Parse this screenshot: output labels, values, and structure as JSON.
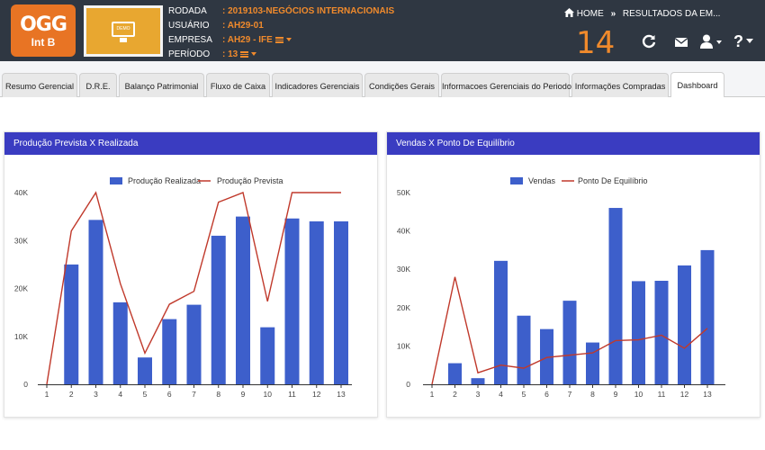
{
  "header": {
    "logo_line1": "OGG",
    "logo_line2": "Int B",
    "demo_badge": "DEMO",
    "rodada_label": "RODADA",
    "rodada_value": ": 2019103-NEGÓCIOS INTERNACIONAIS",
    "usuario_label": "USUÁRIO",
    "usuario_value": ": AH29-01",
    "empresa_label": "EMPRESA",
    "empresa_value": ": AH29 - IFE",
    "periodo_label": "PERÍODO",
    "periodo_value": ": 13",
    "breadcrumb_home": "HOME",
    "breadcrumb_current": "RESULTADOS DA EM...",
    "round_number": "14"
  },
  "tabs": [
    {
      "label": "Resumo Gerencial"
    },
    {
      "label": "D.R.E."
    },
    {
      "label": "Balanço Patrimonial"
    },
    {
      "label": "Fluxo de Caixa"
    },
    {
      "label": "Indicadores Gerenciais"
    },
    {
      "label": "Condições Gerais"
    },
    {
      "label": "Informacoes Gerenciais do Periodo"
    },
    {
      "label": "Informações Compradas"
    },
    {
      "label": "Dashboard"
    }
  ],
  "active_tab": "Dashboard",
  "colors": {
    "bar": "#3d5fcb",
    "line": "#c0392b",
    "panel_header": "#3a3cc1",
    "accent": "#f08a2c"
  },
  "chart_data": [
    {
      "type": "bar",
      "title": "Produção Prevista X Realizada",
      "categories": [
        "1",
        "2",
        "3",
        "4",
        "5",
        "6",
        "7",
        "8",
        "9",
        "10",
        "11",
        "12",
        "13"
      ],
      "ylim": [
        0,
        40000
      ],
      "yticks": [
        "0",
        "10K",
        "20K",
        "30K",
        "40K"
      ],
      "series": [
        {
          "name": "Produção Realizada",
          "type": "bar",
          "values": [
            0,
            25000,
            34300,
            17100,
            5600,
            13600,
            16600,
            31000,
            35000,
            11900,
            34600,
            34000,
            34000
          ]
        },
        {
          "name": "Produção Prevista",
          "type": "line",
          "values": [
            0,
            32000,
            40000,
            21000,
            6500,
            16700,
            19400,
            38000,
            40000,
            17300,
            40000,
            40000,
            40000
          ]
        }
      ]
    },
    {
      "type": "bar",
      "title": "Vendas X Ponto De Equilíbrio",
      "categories": [
        "1",
        "2",
        "3",
        "4",
        "5",
        "6",
        "7",
        "8",
        "9",
        "10",
        "11",
        "12",
        "13"
      ],
      "ylim": [
        0,
        50000
      ],
      "yticks": [
        "0",
        "10K",
        "20K",
        "30K",
        "40K",
        "50K"
      ],
      "series": [
        {
          "name": "Vendas",
          "type": "bar",
          "values": [
            0,
            5500,
            1600,
            32200,
            17900,
            14400,
            21800,
            10900,
            46000,
            26900,
            27000,
            31000,
            35000
          ]
        },
        {
          "name": "Ponto De Equilíbrio",
          "type": "line",
          "values": [
            0,
            28000,
            3000,
            5000,
            4200,
            7000,
            7600,
            8200,
            11400,
            11600,
            12800,
            9400,
            14600
          ]
        }
      ]
    }
  ]
}
